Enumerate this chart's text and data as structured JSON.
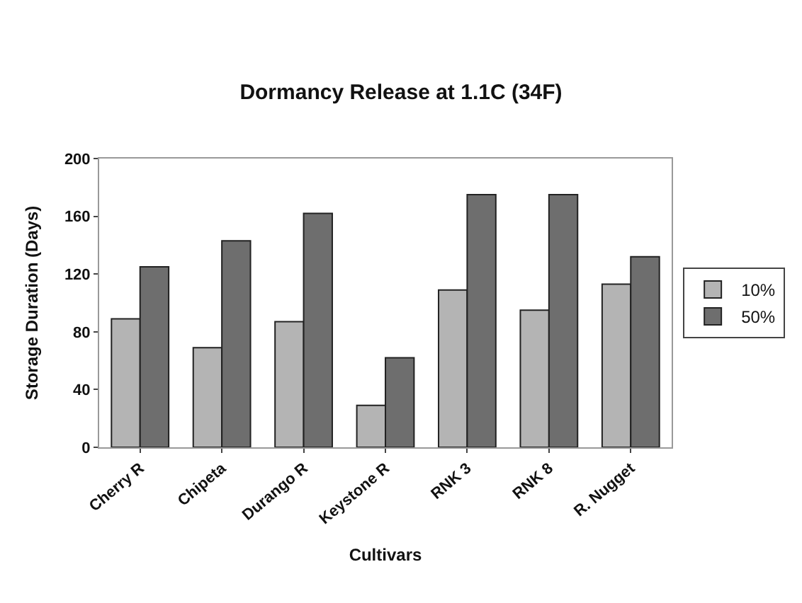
{
  "chart_data": {
    "type": "bar",
    "title": "Dormancy Release at 1.1C (34F)",
    "xlabel": "Cultivars",
    "ylabel": "Storage Duration (Days)",
    "categories": [
      "Cherry R",
      "Chipeta",
      "Durango R",
      "Keystone R",
      "RNK 3",
      "RNK 8",
      "R. Nugget"
    ],
    "series": [
      {
        "name": "10%",
        "color": "#b4b4b4",
        "values": [
          89,
          69,
          87,
          29,
          109,
          95,
          113
        ]
      },
      {
        "name": "50%",
        "color": "#6e6e6e",
        "values": [
          125,
          143,
          162,
          62,
          175,
          175,
          132
        ]
      }
    ],
    "ylim": [
      0,
      200
    ],
    "yticks": [
      0,
      40,
      80,
      120,
      160,
      200
    ],
    "grid": false,
    "legend": "right"
  }
}
